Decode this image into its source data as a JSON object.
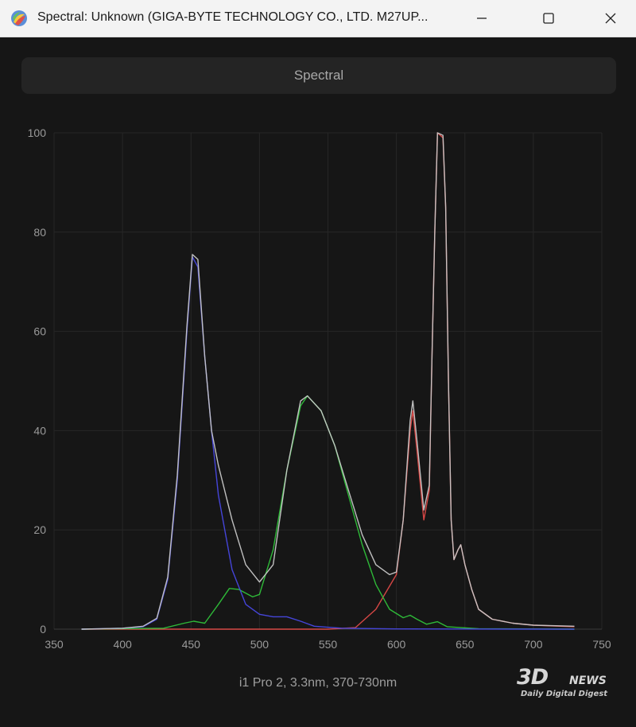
{
  "window": {
    "title": "Spectral: Unknown (GIGA-BYTE TECHNOLOGY CO., LTD. M27UP...",
    "icons": [
      "app-color-icon",
      "minimize-icon",
      "maximize-icon",
      "close-icon"
    ]
  },
  "header": {
    "label": "Spectral"
  },
  "caption": "i1 Pro 2, 3.3nm, 370-730nm",
  "watermark": {
    "big": "3D",
    "news": "NEWS",
    "sub": "Daily Digital Digest"
  },
  "colors": {
    "red": "#e04a48",
    "green": "#2fc23a",
    "blue": "#4848e4",
    "total": "#c8c8c8"
  },
  "chart_data": {
    "type": "line",
    "title": "",
    "xlabel": "",
    "ylabel": "",
    "xlim": [
      350,
      750
    ],
    "ylim": [
      0,
      100
    ],
    "x_ticks": [
      "350",
      "400",
      "450",
      "500",
      "550",
      "600",
      "650",
      "700",
      "750"
    ],
    "y_ticks": [
      "0",
      "20",
      "40",
      "60",
      "80",
      "100"
    ],
    "grid": true,
    "legend": "none",
    "series": [
      {
        "key": "red",
        "color": "#e04a48",
        "points": [
          [
            370,
            0
          ],
          [
            550,
            0
          ],
          [
            570,
            0.3
          ],
          [
            585,
            4
          ],
          [
            600,
            11
          ],
          [
            605,
            22
          ],
          [
            610,
            40
          ],
          [
            612,
            44
          ],
          [
            615,
            36
          ],
          [
            620,
            22
          ],
          [
            624,
            28
          ],
          [
            626,
            55
          ],
          [
            628,
            80
          ],
          [
            630,
            100
          ],
          [
            634,
            99
          ],
          [
            636,
            85
          ],
          [
            638,
            50
          ],
          [
            640,
            22
          ],
          [
            642,
            14
          ],
          [
            645,
            16
          ],
          [
            647,
            17
          ],
          [
            650,
            13
          ],
          [
            655,
            8
          ],
          [
            660,
            4
          ],
          [
            670,
            2
          ],
          [
            685,
            1.2
          ],
          [
            700,
            0.8
          ],
          [
            730,
            0.5
          ]
        ]
      },
      {
        "key": "green",
        "color": "#2fc23a",
        "points": [
          [
            370,
            0
          ],
          [
            430,
            0.2
          ],
          [
            445,
            1.2
          ],
          [
            452,
            1.6
          ],
          [
            460,
            1.2
          ],
          [
            470,
            5
          ],
          [
            478,
            8.2
          ],
          [
            485,
            8
          ],
          [
            495,
            6.5
          ],
          [
            500,
            7
          ],
          [
            510,
            16
          ],
          [
            520,
            32
          ],
          [
            530,
            45
          ],
          [
            535,
            47
          ],
          [
            545,
            44
          ],
          [
            555,
            37
          ],
          [
            565,
            27
          ],
          [
            575,
            17
          ],
          [
            585,
            9
          ],
          [
            595,
            4
          ],
          [
            605,
            2.3
          ],
          [
            610,
            2.8
          ],
          [
            615,
            2
          ],
          [
            622,
            1
          ],
          [
            630,
            1.5
          ],
          [
            637,
            0.5
          ],
          [
            660,
            0.1
          ],
          [
            730,
            0
          ]
        ]
      },
      {
        "key": "blue",
        "color": "#4848e4",
        "points": [
          [
            370,
            0
          ],
          [
            400,
            0.2
          ],
          [
            415,
            0.5
          ],
          [
            425,
            2
          ],
          [
            433,
            10
          ],
          [
            440,
            30
          ],
          [
            447,
            60
          ],
          [
            451,
            75
          ],
          [
            455,
            73
          ],
          [
            460,
            55
          ],
          [
            465,
            40
          ],
          [
            470,
            27
          ],
          [
            480,
            12
          ],
          [
            490,
            5
          ],
          [
            500,
            3
          ],
          [
            510,
            2.5
          ],
          [
            520,
            2.5
          ],
          [
            530,
            1.6
          ],
          [
            540,
            0.6
          ],
          [
            560,
            0.2
          ],
          [
            600,
            0.05
          ],
          [
            730,
            0
          ]
        ]
      },
      {
        "key": "total",
        "color": "#c8c8c8",
        "points": [
          [
            370,
            0
          ],
          [
            400,
            0.2
          ],
          [
            415,
            0.6
          ],
          [
            425,
            2.2
          ],
          [
            433,
            10.5
          ],
          [
            440,
            31
          ],
          [
            447,
            61
          ],
          [
            451,
            75.5
          ],
          [
            455,
            74.5
          ],
          [
            460,
            55
          ],
          [
            465,
            40
          ],
          [
            470,
            33
          ],
          [
            480,
            22
          ],
          [
            490,
            13
          ],
          [
            500,
            9.5
          ],
          [
            510,
            13
          ],
          [
            520,
            32
          ],
          [
            530,
            46
          ],
          [
            535,
            47
          ],
          [
            545,
            44
          ],
          [
            555,
            37
          ],
          [
            565,
            28
          ],
          [
            575,
            19
          ],
          [
            585,
            13
          ],
          [
            595,
            11
          ],
          [
            600,
            11.5
          ],
          [
            605,
            22
          ],
          [
            610,
            42
          ],
          [
            612,
            46
          ],
          [
            615,
            38
          ],
          [
            620,
            24
          ],
          [
            624,
            29
          ],
          [
            626,
            55
          ],
          [
            628,
            80
          ],
          [
            630,
            100
          ],
          [
            634,
            99.5
          ],
          [
            636,
            85
          ],
          [
            638,
            50
          ],
          [
            640,
            22
          ],
          [
            642,
            14
          ],
          [
            645,
            16
          ],
          [
            647,
            17
          ],
          [
            650,
            13
          ],
          [
            655,
            8
          ],
          [
            660,
            4
          ],
          [
            670,
            2
          ],
          [
            685,
            1.2
          ],
          [
            700,
            0.8
          ],
          [
            730,
            0.6
          ]
        ]
      }
    ]
  }
}
